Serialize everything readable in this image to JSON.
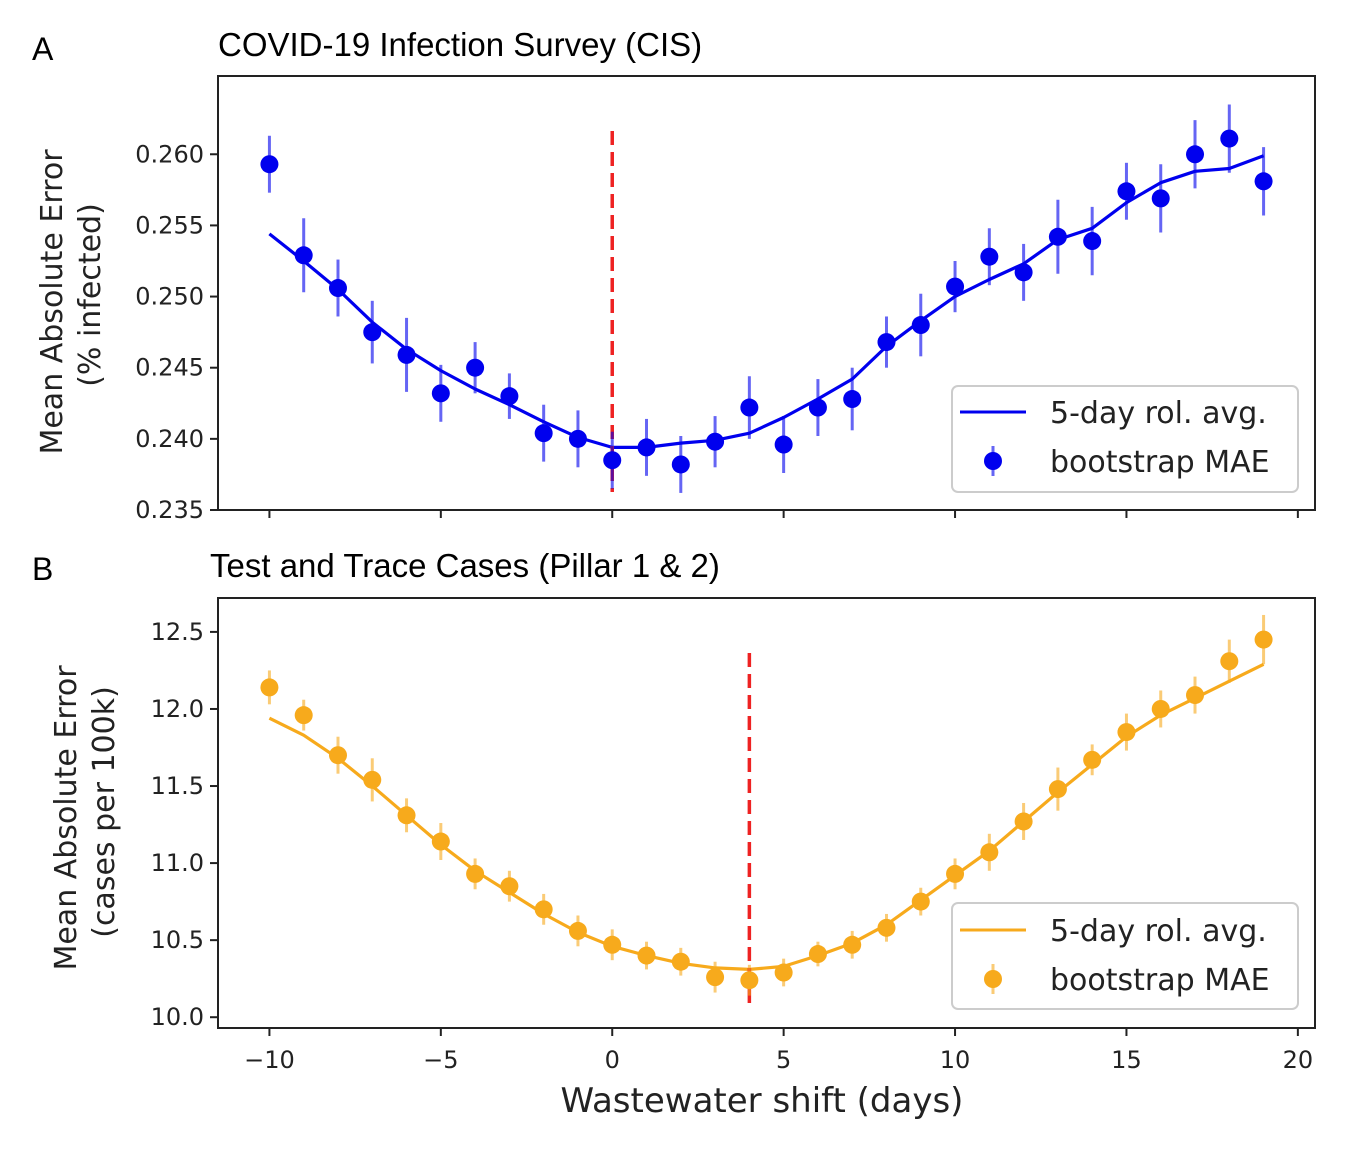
{
  "chart_data": [
    {
      "panel_letter": "A",
      "title": "COVID-19 Infection Survey (CIS)",
      "type": "line",
      "xlabel": "",
      "ylabel": "Mean Absolute Error",
      "ylabel2": "(% infected)",
      "xlim": [
        -11.5,
        20.5
      ],
      "ylim": [
        0.235,
        0.2655
      ],
      "x_ticks": [
        -10,
        -5,
        0,
        5,
        10,
        15,
        20
      ],
      "y_ticks": [
        0.235,
        0.24,
        0.245,
        0.25,
        0.255,
        0.26
      ],
      "y_tick_labels": [
        "0.235",
        "0.240",
        "0.245",
        "0.250",
        "0.255",
        "0.260"
      ],
      "color": "#0000ee",
      "optimal_shift": 0,
      "optimal_line_color": "#ee2222",
      "legend": {
        "position": "lower-right",
        "line_label": "5-day rol. avg.",
        "marker_label": "bootstrap MAE"
      },
      "grid": false,
      "series": [
        {
          "name": "5-day rol. avg.",
          "kind": "line",
          "x": [
            -10,
            -9,
            -8,
            -7,
            -6,
            -5,
            -4,
            -3,
            -2,
            -1,
            0,
            1,
            2,
            3,
            4,
            5,
            6,
            7,
            8,
            9,
            10,
            11,
            12,
            13,
            14,
            15,
            16,
            17,
            18,
            19
          ],
          "y": [
            0.2544,
            0.2525,
            0.2505,
            0.2482,
            0.2463,
            0.2448,
            0.2435,
            0.2424,
            0.2412,
            0.2401,
            0.2394,
            0.2394,
            0.2397,
            0.2399,
            0.2404,
            0.2415,
            0.2428,
            0.2442,
            0.2465,
            0.2483,
            0.25,
            0.2512,
            0.2523,
            0.254,
            0.2548,
            0.2566,
            0.258,
            0.2588,
            0.259,
            0.2599
          ]
        },
        {
          "name": "bootstrap MAE",
          "kind": "errorbar",
          "x": [
            -10,
            -9,
            -8,
            -7,
            -6,
            -5,
            -4,
            -3,
            -2,
            -1,
            0,
            1,
            2,
            3,
            4,
            5,
            6,
            7,
            8,
            9,
            10,
            11,
            12,
            13,
            14,
            15,
            16,
            17,
            18,
            19
          ],
          "y": [
            0.2593,
            0.2529,
            0.2506,
            0.2475,
            0.2459,
            0.2432,
            0.245,
            0.243,
            0.2404,
            0.24,
            0.2385,
            0.2394,
            0.2382,
            0.2398,
            0.2422,
            0.2396,
            0.2422,
            0.2428,
            0.2468,
            0.248,
            0.2507,
            0.2528,
            0.2517,
            0.2542,
            0.2539,
            0.2574,
            0.2569,
            0.26,
            0.2611,
            0.2581
          ],
          "err": [
            0.002,
            0.0026,
            0.002,
            0.0022,
            0.0026,
            0.002,
            0.0018,
            0.0016,
            0.002,
            0.002,
            0.002,
            0.002,
            0.002,
            0.0018,
            0.0022,
            0.002,
            0.002,
            0.0022,
            0.0018,
            0.0022,
            0.0018,
            0.002,
            0.002,
            0.0026,
            0.0024,
            0.002,
            0.0024,
            0.0024,
            0.0024,
            0.0024
          ]
        }
      ]
    },
    {
      "panel_letter": "B",
      "title": "Test and Trace Cases (Pillar 1 & 2)",
      "type": "line",
      "xlabel": "Wastewater shift (days)",
      "ylabel": "Mean Absolute Error",
      "ylabel2": "(cases per 100k)",
      "xlim": [
        -11.5,
        20.5
      ],
      "ylim": [
        9.93,
        12.72
      ],
      "x_ticks": [
        -10,
        -5,
        0,
        5,
        10,
        15,
        20
      ],
      "x_tick_labels": [
        "−10",
        "−5",
        "0",
        "5",
        "10",
        "15",
        "20"
      ],
      "y_ticks": [
        10.0,
        10.5,
        11.0,
        11.5,
        12.0,
        12.5
      ],
      "y_tick_labels": [
        "10.0",
        "10.5",
        "11.0",
        "11.5",
        "12.0",
        "12.5"
      ],
      "color": "#f7aa1c",
      "optimal_shift": 4,
      "optimal_line_color": "#ee2222",
      "legend": {
        "position": "lower-right",
        "line_label": "5-day rol. avg.",
        "marker_label": "bootstrap MAE"
      },
      "grid": false,
      "series": [
        {
          "name": "5-day rol. avg.",
          "kind": "line",
          "x": [
            -10,
            -9,
            -8,
            -7,
            -6,
            -5,
            -4,
            -3,
            -2,
            -1,
            0,
            1,
            2,
            3,
            4,
            5,
            6,
            7,
            8,
            9,
            10,
            11,
            12,
            13,
            14,
            15,
            16,
            17,
            18,
            19
          ],
          "y": [
            11.94,
            11.83,
            11.68,
            11.5,
            11.31,
            11.12,
            10.95,
            10.81,
            10.67,
            10.55,
            10.46,
            10.4,
            10.35,
            10.32,
            10.31,
            10.33,
            10.4,
            10.48,
            10.6,
            10.76,
            10.92,
            11.08,
            11.27,
            11.46,
            11.64,
            11.82,
            11.96,
            12.07,
            12.18,
            12.29
          ]
        },
        {
          "name": "bootstrap MAE",
          "kind": "errorbar",
          "x": [
            -10,
            -9,
            -8,
            -7,
            -6,
            -5,
            -4,
            -3,
            -2,
            -1,
            0,
            1,
            2,
            3,
            4,
            5,
            6,
            7,
            8,
            9,
            10,
            11,
            12,
            13,
            14,
            15,
            16,
            17,
            18,
            19
          ],
          "y": [
            12.14,
            11.96,
            11.7,
            11.54,
            11.31,
            11.14,
            10.93,
            10.85,
            10.7,
            10.56,
            10.47,
            10.4,
            10.36,
            10.26,
            10.24,
            10.29,
            10.41,
            10.47,
            10.58,
            10.75,
            10.93,
            11.07,
            11.27,
            11.48,
            11.67,
            11.85,
            12.0,
            12.09,
            12.31,
            12.45
          ],
          "err": [
            0.11,
            0.1,
            0.12,
            0.14,
            0.11,
            0.12,
            0.1,
            0.1,
            0.1,
            0.1,
            0.1,
            0.09,
            0.09,
            0.1,
            0.1,
            0.09,
            0.08,
            0.09,
            0.09,
            0.09,
            0.1,
            0.12,
            0.12,
            0.14,
            0.1,
            0.12,
            0.12,
            0.12,
            0.14,
            0.16
          ]
        }
      ]
    }
  ]
}
